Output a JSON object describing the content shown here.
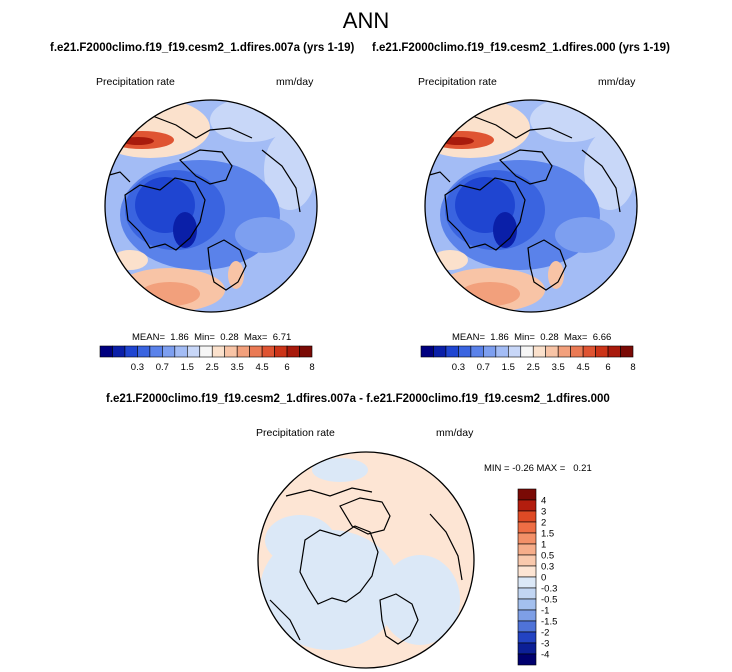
{
  "main_title": "ANN",
  "panels": {
    "left": {
      "case_title": "f.e21.F2000climo.f19_f19.cesm2_1.dfires.007a (yrs 1-19)",
      "variable": "Precipitation rate",
      "units": "mm/day",
      "stats": {
        "mean_label": "MEAN=",
        "mean": "1.86",
        "min_label": "Min=",
        "min": "0.28",
        "max_label": "Max=",
        "max": "6.71"
      }
    },
    "right": {
      "case_title": "f.e21.F2000climo.f19_f19.cesm2_1.dfires.000 (yrs 1-19)",
      "variable": "Precipitation rate",
      "units": "mm/day",
      "stats": {
        "mean_label": "MEAN=",
        "mean": "1.86",
        "min_label": "Min=",
        "min": "0.28",
        "max_label": "Max=",
        "max": "6.66"
      }
    },
    "diff": {
      "case_title": "f.e21.F2000climo.f19_f19.cesm2_1.dfires.007a - f.e21.F2000climo.f19_f19.cesm2_1.dfires.000",
      "variable": "Precipitation rate",
      "units": "mm/day",
      "stats": {
        "min_label": "MIN =",
        "min": "-0.26",
        "max_label": "MAX =",
        "max": "0.21"
      }
    }
  },
  "chart_data": [
    {
      "type": "heatmap",
      "projection": "north-polar-stereographic",
      "title": "Precipitation rate",
      "units": "mm/day",
      "colorbar": {
        "orientation": "horizontal",
        "levels": [
          0.1,
          0.2,
          0.3,
          0.5,
          0.7,
          1,
          1.5,
          2,
          2.5,
          3,
          3.5,
          4,
          4.5,
          5,
          6,
          7,
          8,
          9
        ],
        "tick_labels": [
          "0.3",
          "0.7",
          "1.5",
          "2.5",
          "3.5",
          "4.5",
          "6",
          "8"
        ],
        "colors": [
          "#00007f",
          "#0a1fa8",
          "#1f45d1",
          "#3a64e0",
          "#5a82ea",
          "#7d9ff0",
          "#a3bcf5",
          "#c8d7f8",
          "#f6f6f6",
          "#fbe1cc",
          "#f8c4a6",
          "#f2a07c",
          "#ea7a54",
          "#df5432",
          "#cc3418",
          "#a81a0c",
          "#7a0a05"
        ]
      },
      "stats": {
        "mean": 1.86,
        "min": 0.28,
        "max": 6.71
      }
    },
    {
      "type": "heatmap",
      "projection": "north-polar-stereographic",
      "title": "Precipitation rate",
      "units": "mm/day",
      "colorbar": {
        "orientation": "horizontal",
        "levels": [
          0.1,
          0.2,
          0.3,
          0.5,
          0.7,
          1,
          1.5,
          2,
          2.5,
          3,
          3.5,
          4,
          4.5,
          5,
          6,
          7,
          8,
          9
        ],
        "tick_labels": [
          "0.3",
          "0.7",
          "1.5",
          "2.5",
          "3.5",
          "4.5",
          "6",
          "8"
        ],
        "colors": [
          "#00007f",
          "#0a1fa8",
          "#1f45d1",
          "#3a64e0",
          "#5a82ea",
          "#7d9ff0",
          "#a3bcf5",
          "#c8d7f8",
          "#f6f6f6",
          "#fbe1cc",
          "#f8c4a6",
          "#f2a07c",
          "#ea7a54",
          "#df5432",
          "#cc3418",
          "#a81a0c",
          "#7a0a05"
        ]
      },
      "stats": {
        "mean": 1.86,
        "min": 0.28,
        "max": 6.66
      }
    },
    {
      "type": "heatmap",
      "projection": "north-polar-stereographic",
      "title": "Precipitation rate",
      "units": "mm/day",
      "colorbar": {
        "orientation": "vertical",
        "tick_labels": [
          "4",
          "3",
          "2",
          "1.5",
          "1",
          "0.5",
          "0.3",
          "0",
          "-0.3",
          "-0.5",
          "-1",
          "-1.5",
          "-2",
          "-3",
          "-4"
        ],
        "colors": [
          "#7a0a05",
          "#b31d0e",
          "#df4a25",
          "#ee6e45",
          "#f39068",
          "#f6ad8a",
          "#f9c9ad",
          "#fde5d4",
          "#dbe8f7",
          "#c2d6f3",
          "#a4c0ee",
          "#7e9fe6",
          "#4f73d8",
          "#2343c2",
          "#0c1f96",
          "#00006e"
        ]
      },
      "stats": {
        "min": -0.26,
        "max": 0.21
      }
    }
  ]
}
